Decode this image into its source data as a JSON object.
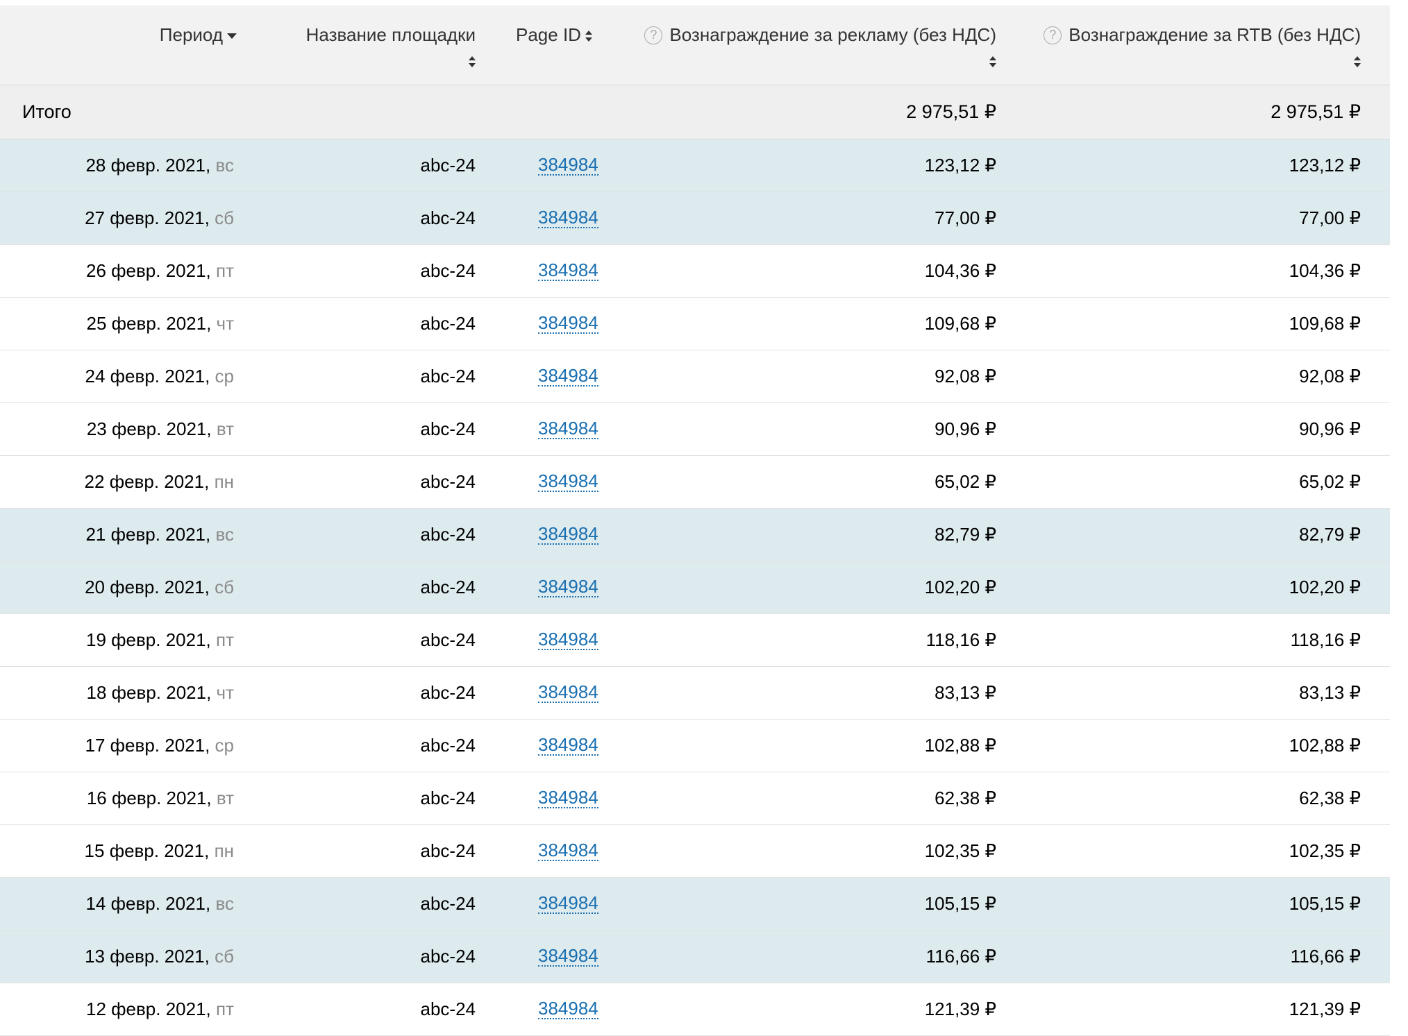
{
  "header": {
    "period": "Период",
    "site_name": "Название площадки",
    "page_id": "Page ID",
    "ad_reward": "Вознаграждение за рекламу (без НДС)",
    "rtb_reward": "Вознаграждение за RTB (без НДС)",
    "help_icon": "?"
  },
  "total": {
    "label": "Итого",
    "ad_reward": "2 975,51 ₽",
    "rtb_reward": "2 975,51 ₽"
  },
  "rows": [
    {
      "date": "28 февр. 2021,",
      "dow": "вс",
      "site": "abc-24",
      "page_id": "384984",
      "ad": "123,12 ₽",
      "rtb": "123,12 ₽",
      "weekend": true
    },
    {
      "date": "27 февр. 2021,",
      "dow": "сб",
      "site": "abc-24",
      "page_id": "384984",
      "ad": "77,00 ₽",
      "rtb": "77,00 ₽",
      "weekend": true
    },
    {
      "date": "26 февр. 2021,",
      "dow": "пт",
      "site": "abc-24",
      "page_id": "384984",
      "ad": "104,36 ₽",
      "rtb": "104,36 ₽",
      "weekend": false
    },
    {
      "date": "25 февр. 2021,",
      "dow": "чт",
      "site": "abc-24",
      "page_id": "384984",
      "ad": "109,68 ₽",
      "rtb": "109,68 ₽",
      "weekend": false
    },
    {
      "date": "24 февр. 2021,",
      "dow": "ср",
      "site": "abc-24",
      "page_id": "384984",
      "ad": "92,08 ₽",
      "rtb": "92,08 ₽",
      "weekend": false
    },
    {
      "date": "23 февр. 2021,",
      "dow": "вт",
      "site": "abc-24",
      "page_id": "384984",
      "ad": "90,96 ₽",
      "rtb": "90,96 ₽",
      "weekend": false
    },
    {
      "date": "22 февр. 2021,",
      "dow": "пн",
      "site": "abc-24",
      "page_id": "384984",
      "ad": "65,02 ₽",
      "rtb": "65,02 ₽",
      "weekend": false
    },
    {
      "date": "21 февр. 2021,",
      "dow": "вс",
      "site": "abc-24",
      "page_id": "384984",
      "ad": "82,79 ₽",
      "rtb": "82,79 ₽",
      "weekend": true
    },
    {
      "date": "20 февр. 2021,",
      "dow": "сб",
      "site": "abc-24",
      "page_id": "384984",
      "ad": "102,20 ₽",
      "rtb": "102,20 ₽",
      "weekend": true
    },
    {
      "date": "19 февр. 2021,",
      "dow": "пт",
      "site": "abc-24",
      "page_id": "384984",
      "ad": "118,16 ₽",
      "rtb": "118,16 ₽",
      "weekend": false
    },
    {
      "date": "18 февр. 2021,",
      "dow": "чт",
      "site": "abc-24",
      "page_id": "384984",
      "ad": "83,13 ₽",
      "rtb": "83,13 ₽",
      "weekend": false
    },
    {
      "date": "17 февр. 2021,",
      "dow": "ср",
      "site": "abc-24",
      "page_id": "384984",
      "ad": "102,88 ₽",
      "rtb": "102,88 ₽",
      "weekend": false
    },
    {
      "date": "16 февр. 2021,",
      "dow": "вт",
      "site": "abc-24",
      "page_id": "384984",
      "ad": "62,38 ₽",
      "rtb": "62,38 ₽",
      "weekend": false
    },
    {
      "date": "15 февр. 2021,",
      "dow": "пн",
      "site": "abc-24",
      "page_id": "384984",
      "ad": "102,35 ₽",
      "rtb": "102,35 ₽",
      "weekend": false
    },
    {
      "date": "14 февр. 2021,",
      "dow": "вс",
      "site": "abc-24",
      "page_id": "384984",
      "ad": "105,15 ₽",
      "rtb": "105,15 ₽",
      "weekend": true
    },
    {
      "date": "13 февр. 2021,",
      "dow": "сб",
      "site": "abc-24",
      "page_id": "384984",
      "ad": "116,66 ₽",
      "rtb": "116,66 ₽",
      "weekend": true
    },
    {
      "date": "12 февр. 2021,",
      "dow": "пт",
      "site": "abc-24",
      "page_id": "384984",
      "ad": "121,39 ₽",
      "rtb": "121,39 ₽",
      "weekend": false
    }
  ],
  "colors": {
    "weekend_row": "#ddeaee",
    "header_bg": "#f2f2f2",
    "link": "#1a6fb0"
  },
  "icons": {
    "sort_desc": "caret-down-icon",
    "sort_both": "sort-icon",
    "help": "question-circle-icon"
  }
}
